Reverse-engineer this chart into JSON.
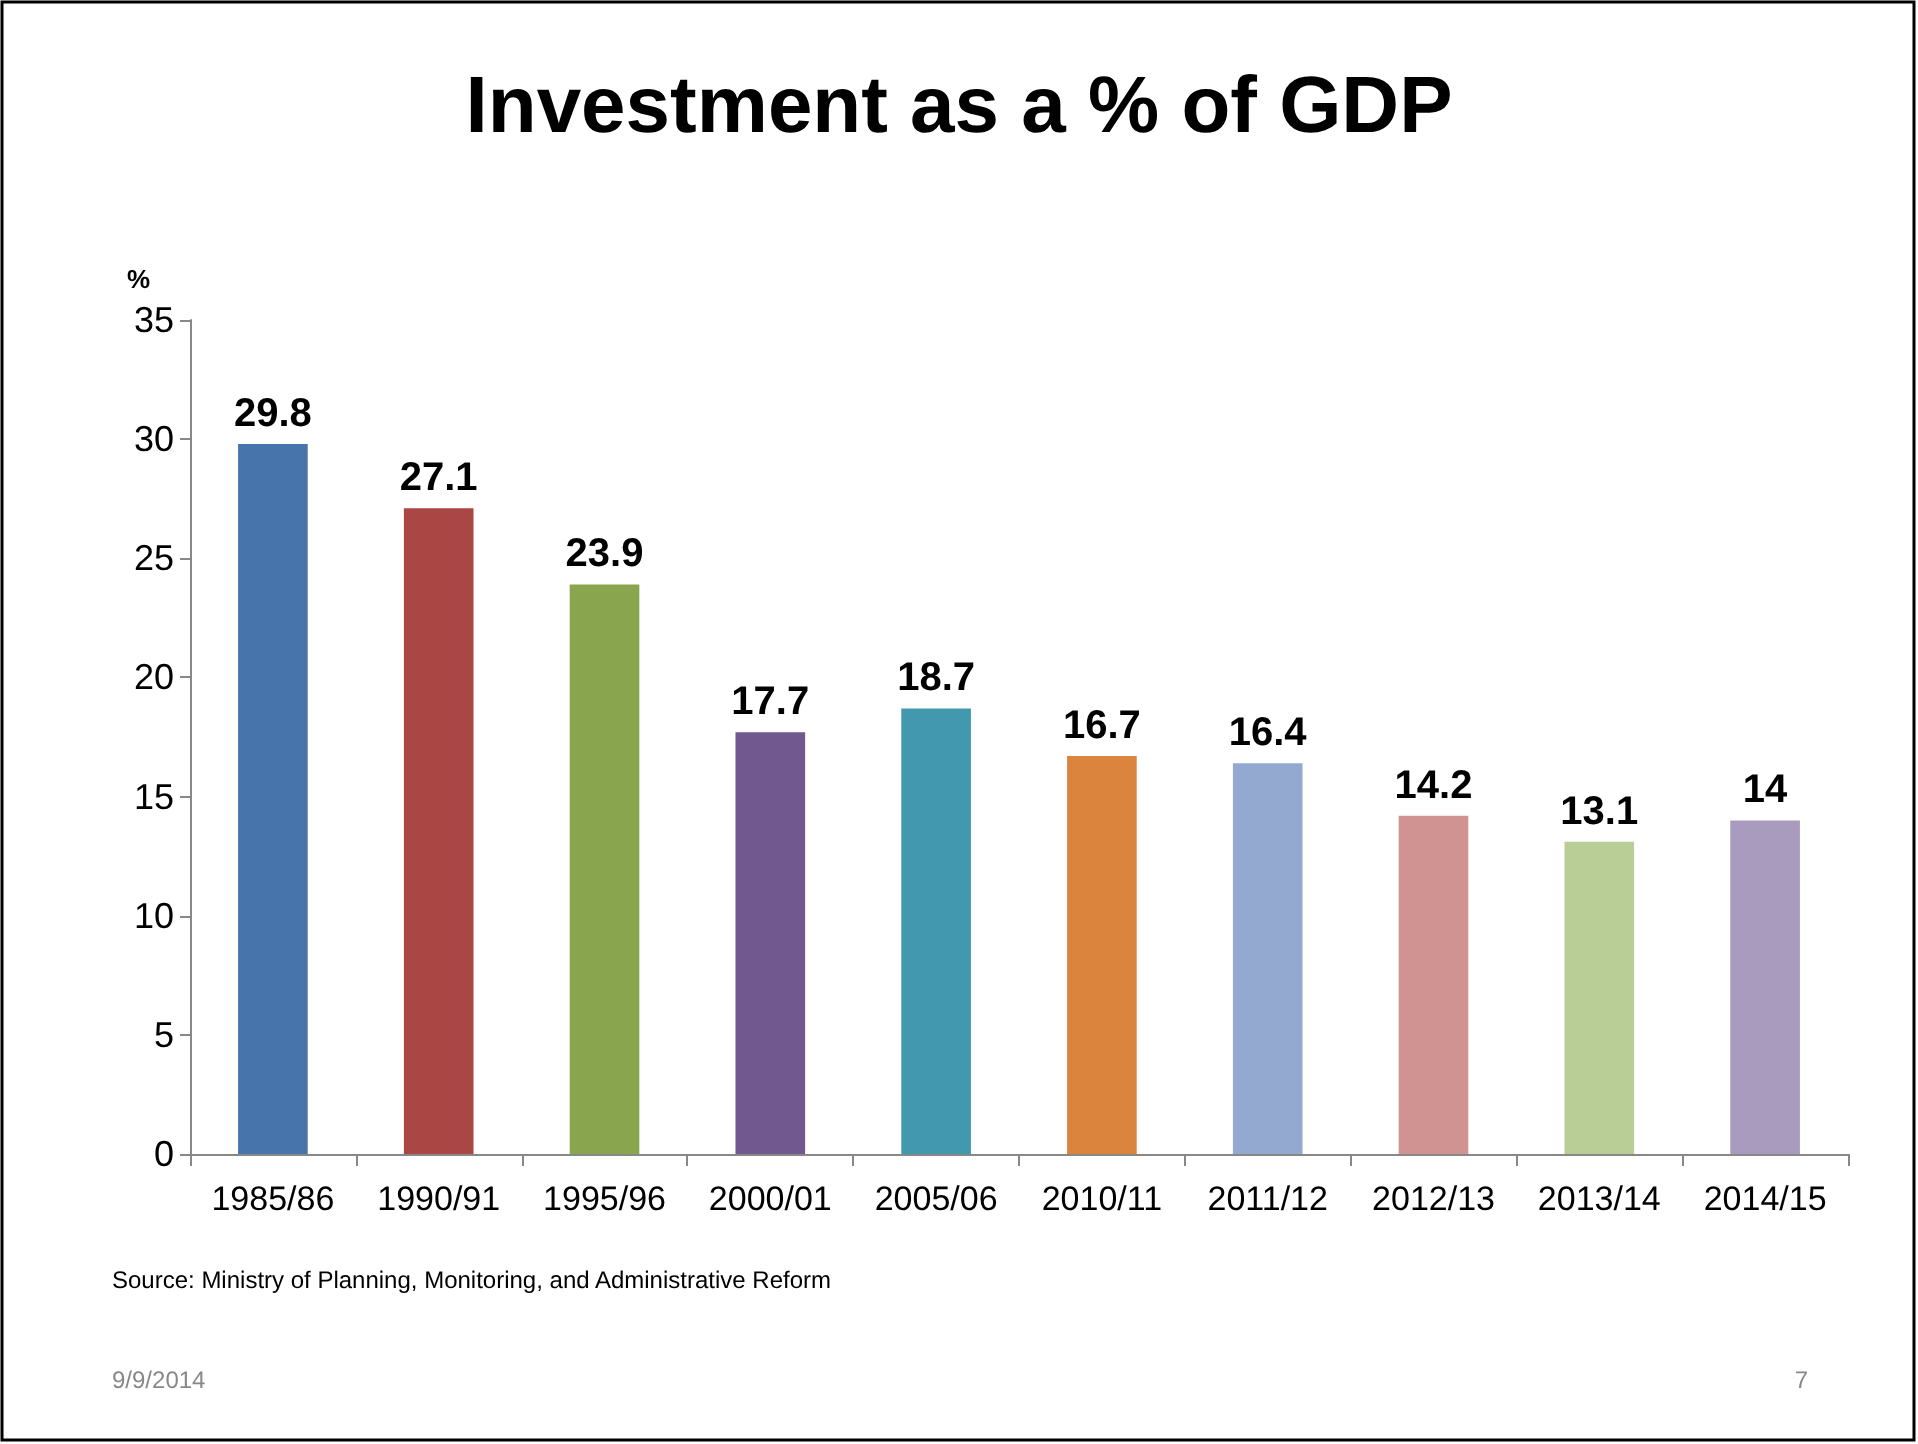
{
  "chart_data": {
    "type": "bar",
    "title": "Investment as a % of GDP",
    "ylabel": "%",
    "categories": [
      "1985/86",
      "1990/91",
      "1995/96",
      "2000/01",
      "2005/06",
      "2010/11",
      "2011/12",
      "2012/13",
      "2013/14",
      "2014/15"
    ],
    "values": [
      29.8,
      27.1,
      23.9,
      17.7,
      18.7,
      16.7,
      16.4,
      14.2,
      13.1,
      14
    ],
    "colors": [
      "#4674ab",
      "#aa4644",
      "#89a54e",
      "#71588f",
      "#4198af",
      "#db843d",
      "#93a9cf",
      "#d19392",
      "#b9cd96",
      "#a99bbd"
    ],
    "ylim": [
      0,
      35
    ],
    "yticks": [
      0,
      5,
      10,
      15,
      20,
      25,
      30,
      35
    ],
    "data_labels": true,
    "annotations": [
      "Source: Ministry of Planning, Monitoring, and Administrative Reform",
      "9/9/2014",
      "7"
    ]
  }
}
